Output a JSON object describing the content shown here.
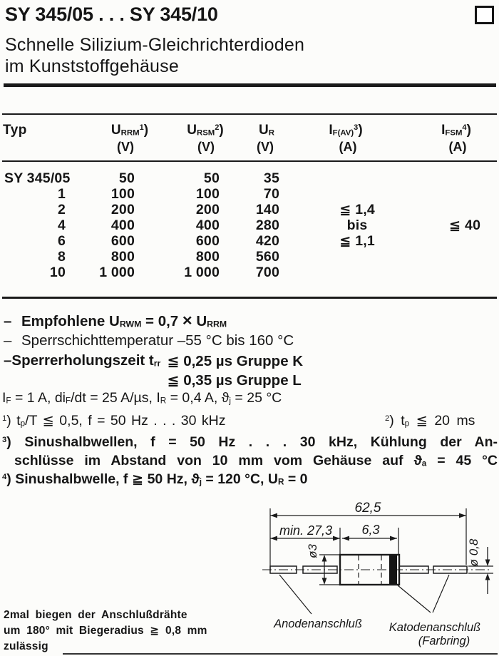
{
  "page": {
    "paper_color": "#fcfcfa",
    "ink_color": "#161616"
  },
  "header": {
    "title": "SY 345/05 . . . SY 345/10",
    "subtitle_line1": "Schnelle Silizium-Gleichrichterdioden",
    "subtitle_line2": "im Kunststoffgehäuse"
  },
  "table": {
    "typ_header": "Typ",
    "headers": {
      "urrm": [
        [
          "t",
          "U"
        ],
        [
          "sub",
          "RRM"
        ],
        [
          "sup",
          "1"
        ],
        [
          "t",
          ")"
        ]
      ],
      "ursm": [
        [
          "t",
          "U"
        ],
        [
          "sub",
          "RSM"
        ],
        [
          "sup",
          "2"
        ],
        [
          "t",
          ")"
        ]
      ],
      "ur": [
        [
          "t",
          "U"
        ],
        [
          "sub",
          "R"
        ]
      ],
      "ifav": [
        [
          "t",
          "I"
        ],
        [
          "sub",
          "F(AV)"
        ],
        [
          "sup",
          "3"
        ],
        [
          "t",
          ")"
        ]
      ],
      "ifsm": [
        [
          "t",
          "I"
        ],
        [
          "sub",
          "FSM"
        ],
        [
          "sup",
          "4"
        ],
        [
          "t",
          ")"
        ]
      ]
    },
    "units": {
      "urrm": "(V)",
      "ursm": "(V)",
      "ur": "(V)",
      "ifav": "(A)",
      "ifsm": "(A)"
    },
    "rows": [
      {
        "typ": "SY 345/05",
        "urrm": "50",
        "ursm": "50",
        "ur": "35",
        "ifav": "",
        "ifsm": ""
      },
      {
        "typ": "1",
        "urrm": "100",
        "ursm": "100",
        "ur": "70",
        "ifav": "",
        "ifsm": ""
      },
      {
        "typ": "2",
        "urrm": "200",
        "ursm": "200",
        "ur": "140",
        "ifav": "≦ 1,4",
        "ifsm": ""
      },
      {
        "typ": "4",
        "urrm": "400",
        "ursm": "400",
        "ur": "280",
        "ifav": "bis",
        "ifsm": "≦ 40"
      },
      {
        "typ": "6",
        "urrm": "600",
        "ursm": "600",
        "ur": "420",
        "ifav": "≦ 1,1",
        "ifsm": ""
      },
      {
        "typ": "8",
        "urrm": "800",
        "ursm": "800",
        "ur": "560",
        "ifav": "",
        "ifsm": ""
      },
      {
        "typ": "10",
        "urrm": "1 000",
        "ursm": "1 000",
        "ur": "700",
        "ifav": "",
        "ifsm": ""
      }
    ]
  },
  "notes": {
    "dash": "–",
    "n1": [
      [
        "t",
        "Empfohlene U"
      ],
      [
        "sub",
        "RWM"
      ],
      [
        "t",
        " = 0,7 "
      ],
      [
        "x",
        "×"
      ],
      [
        "t",
        " U"
      ],
      [
        "sub",
        "RRM"
      ]
    ],
    "n2": [
      [
        "t",
        "Sperrschichttemperatur –55 °C bis 160 °C"
      ]
    ],
    "n3_prefix": [
      [
        "t",
        "Sperrerholungszeit t"
      ],
      [
        "sub",
        "rr"
      ]
    ],
    "n3_line1": "≦ 0,25 µs Gruppe K",
    "n3_line2": "≦ 0,35 µs Gruppe L"
  },
  "footnotes": {
    "f0": [
      [
        "t",
        "I"
      ],
      [
        "sub",
        "F"
      ],
      [
        "t",
        " = 1 A, di"
      ],
      [
        "sub",
        "F"
      ],
      [
        "t",
        "/dt = 25 A/µs, I"
      ],
      [
        "sub",
        "R"
      ],
      [
        "t",
        " = 0,4 A, ϑ"
      ],
      [
        "sub",
        "j"
      ],
      [
        "t",
        " = 25 °C"
      ]
    ],
    "f1": [
      [
        "sup",
        "1"
      ],
      [
        "t",
        ") t"
      ],
      [
        "sub",
        "p"
      ],
      [
        "t",
        "/T ≦ 0,5, f = 50 Hz . . . 30 kHz"
      ]
    ],
    "f2": [
      [
        "sup",
        "2"
      ],
      [
        "t",
        ") t"
      ],
      [
        "sub",
        "p"
      ],
      [
        "t",
        " ≦ 20 ms"
      ]
    ],
    "f3a": [
      [
        "sup",
        "3"
      ],
      [
        "t",
        ") Sinushalbwellen, f = 50 Hz . . . 30 kHz, Kühlung der An-"
      ]
    ],
    "f3b": [
      [
        "t",
        "schlüsse im Abstand von 10 mm vom Gehäuse auf ϑ"
      ],
      [
        "sub",
        "a"
      ],
      [
        "t",
        " = 45 °C"
      ]
    ],
    "f4": [
      [
        "sup",
        "4"
      ],
      [
        "t",
        ") Sinushalbwelle, f ≧ 50 Hz, ϑ"
      ],
      [
        "sub",
        "j"
      ],
      [
        "t",
        " = 120 °C, U"
      ],
      [
        "sub",
        "R"
      ],
      [
        "t",
        " = 0"
      ]
    ]
  },
  "diagram": {
    "dim_overall": "62,5",
    "dim_lead": "min. 27,3",
    "dim_body": "6,3",
    "dim_body_dia": "ø3",
    "dim_wire_dia": "ø 0,8",
    "label_anode": "Anodenanschluß",
    "label_cathode": "Katodenanschluß",
    "label_cathode_2": "(Farbring)"
  },
  "bend_note": {
    "line1": "2mal biegen der Anschlußdrähte",
    "line2": "um 180° mit Biegeradius ≧ 0,8 mm",
    "line3": "zulässig"
  }
}
